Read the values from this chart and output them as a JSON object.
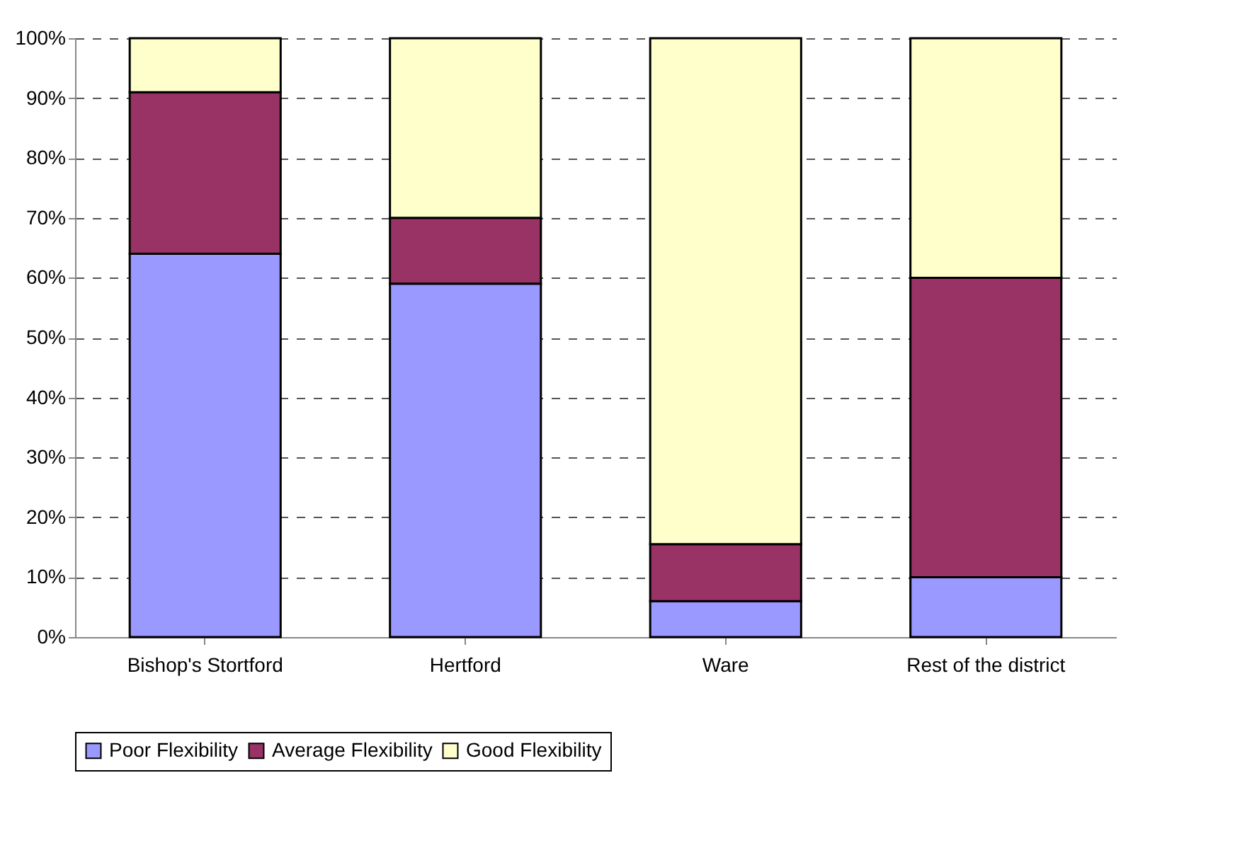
{
  "chart_data": {
    "type": "bar",
    "stacked": true,
    "categories": [
      "Bishop's Stortford",
      "Hertford",
      "Ware",
      "Rest of the district"
    ],
    "series": [
      {
        "name": "Poor Flexibility",
        "color": "#9999ff",
        "values": [
          64,
          59,
          6,
          10
        ]
      },
      {
        "name": "Average Flexibility",
        "color": "#993366",
        "values": [
          27,
          11,
          9.5,
          50
        ]
      },
      {
        "name": "Good Flexibility",
        "color": "#ffffcc",
        "values": [
          9,
          30,
          84.5,
          40
        ]
      }
    ],
    "ylim": [
      0,
      100
    ],
    "yticks": [
      {
        "value": 0,
        "label": "0%"
      },
      {
        "value": 10,
        "label": "10%"
      },
      {
        "value": 20,
        "label": "20%"
      },
      {
        "value": 30,
        "label": "30%"
      },
      {
        "value": 40,
        "label": "40%"
      },
      {
        "value": 50,
        "label": "50%"
      },
      {
        "value": 60,
        "label": "60%"
      },
      {
        "value": 70,
        "label": "70%"
      },
      {
        "value": 80,
        "label": "80%"
      },
      {
        "value": 90,
        "label": "90%"
      },
      {
        "value": 100,
        "label": "100%"
      }
    ],
    "grid": "y",
    "legend": "bottom"
  }
}
